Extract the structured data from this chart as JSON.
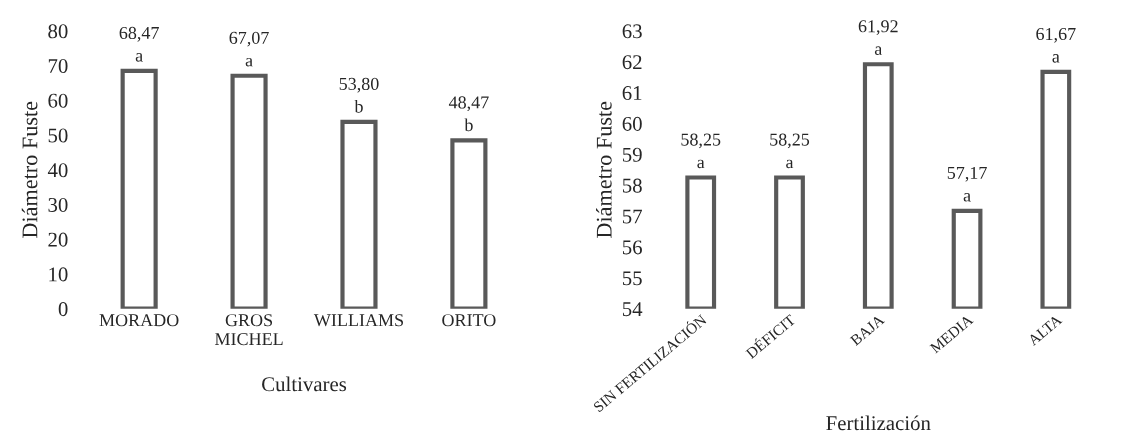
{
  "chart_data": [
    {
      "type": "bar",
      "xlabel": "Cultivares",
      "ylabel": "Diámetro Fuste",
      "categories": [
        "MORADO",
        "GROS\nMICHEL",
        "WILLIAMS",
        "ORITO"
      ],
      "series": [
        {
          "color": "#595959",
          "values": [
            68.47,
            67.07,
            53.8,
            48.47
          ],
          "value_labels": [
            "68,47\na",
            "67,07\na",
            "53,80\nb",
            "48,47\nb"
          ]
        }
      ],
      "ylim": [
        0,
        80
      ],
      "yticks": [
        0,
        10,
        20,
        30,
        40,
        50,
        60,
        70,
        80
      ],
      "grid": false,
      "legend": false
    },
    {
      "type": "bar",
      "xlabel": "Fertilización",
      "ylabel": "Diámetro Fuste",
      "categories": [
        "SIN FERTILIZACIÓN",
        "DÉFICIT",
        "BAJA",
        "MEDIA",
        "ALTA"
      ],
      "series": [
        {
          "color": "#595959",
          "values": [
            58.25,
            58.25,
            61.92,
            57.17,
            61.67
          ],
          "value_labels": [
            "58,25\na",
            "58,25\na",
            "61,92\na",
            "57,17\na",
            "61,67\na"
          ]
        }
      ],
      "ylim": [
        54,
        63
      ],
      "yticks": [
        54,
        55,
        56,
        57,
        58,
        59,
        60,
        61,
        62,
        63
      ],
      "grid": false,
      "legend": false
    }
  ]
}
